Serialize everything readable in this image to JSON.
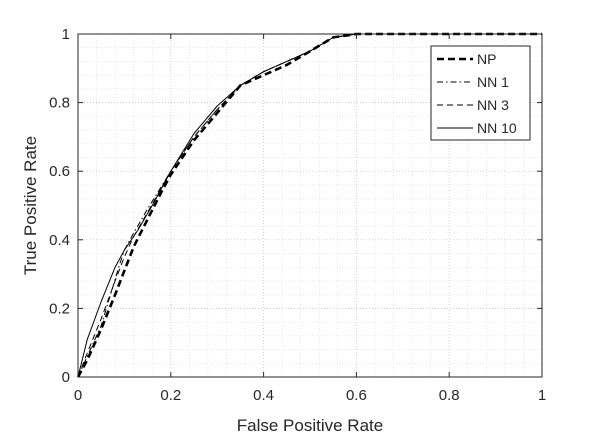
{
  "chart_data": {
    "type": "line",
    "title": "",
    "xlabel": "False Positive Rate",
    "ylabel": "True Positive Rate",
    "xlim": [
      0,
      1
    ],
    "ylim": [
      0,
      1
    ],
    "xticks": [
      0,
      0.2,
      0.4,
      0.6,
      0.8,
      1
    ],
    "yticks": [
      0,
      0.2,
      0.4,
      0.6,
      0.8,
      1
    ],
    "xtick_labels": [
      "0",
      "0.2",
      "0.4",
      "0.6",
      "0.8",
      "1"
    ],
    "ytick_labels": [
      "0",
      "0.2",
      "0.4",
      "0.6",
      "0.8",
      "1"
    ],
    "grid": "on (major and minor, dotted)",
    "legend_position": "top-right",
    "series": [
      {
        "name": "NP",
        "style": "dashed-thick",
        "color": "#000000",
        "x": [
          0,
          0.02,
          0.05,
          0.08,
          0.1,
          0.12,
          0.15,
          0.18,
          0.2,
          0.25,
          0.3,
          0.35,
          0.4,
          0.45,
          0.5,
          0.55,
          0.6,
          0.65,
          0.7,
          0.8,
          1.0
        ],
        "y": [
          0,
          0.05,
          0.14,
          0.24,
          0.31,
          0.38,
          0.46,
          0.54,
          0.59,
          0.69,
          0.77,
          0.85,
          0.88,
          0.91,
          0.95,
          0.99,
          1.0,
          1.0,
          1.0,
          1.0,
          1.0
        ]
      },
      {
        "name": "NN 1",
        "style": "dash-dot",
        "color": "#000000",
        "x": [
          0,
          0.02,
          0.05,
          0.07,
          0.09,
          0.1,
          0.12,
          0.15,
          0.2,
          0.25,
          0.3,
          0.35,
          0.4,
          0.45,
          0.5,
          0.55,
          0.6,
          0.67,
          1.0
        ],
        "y": [
          0,
          0.06,
          0.15,
          0.24,
          0.33,
          0.37,
          0.42,
          0.49,
          0.6,
          0.7,
          0.78,
          0.85,
          0.89,
          0.92,
          0.95,
          0.99,
          1.0,
          1.0,
          1.0
        ]
      },
      {
        "name": "NN 3",
        "style": "dashed-thin",
        "color": "#000000",
        "x": [
          0,
          0.02,
          0.05,
          0.08,
          0.1,
          0.12,
          0.15,
          0.2,
          0.25,
          0.3,
          0.35,
          0.4,
          0.45,
          0.5,
          0.55,
          0.6,
          0.67,
          1.0
        ],
        "y": [
          0,
          0.07,
          0.17,
          0.28,
          0.35,
          0.41,
          0.48,
          0.6,
          0.7,
          0.78,
          0.85,
          0.89,
          0.92,
          0.95,
          0.99,
          1.0,
          1.0,
          1.0
        ]
      },
      {
        "name": "NN 10",
        "style": "solid",
        "color": "#000000",
        "x": [
          0,
          0.02,
          0.05,
          0.08,
          0.1,
          0.13,
          0.16,
          0.2,
          0.25,
          0.3,
          0.35,
          0.4,
          0.45,
          0.5,
          0.55,
          0.6,
          0.67,
          1.0
        ],
        "y": [
          0,
          0.11,
          0.22,
          0.32,
          0.37,
          0.43,
          0.5,
          0.6,
          0.71,
          0.79,
          0.85,
          0.89,
          0.92,
          0.95,
          0.99,
          1.0,
          1.0,
          1.0
        ]
      }
    ]
  }
}
